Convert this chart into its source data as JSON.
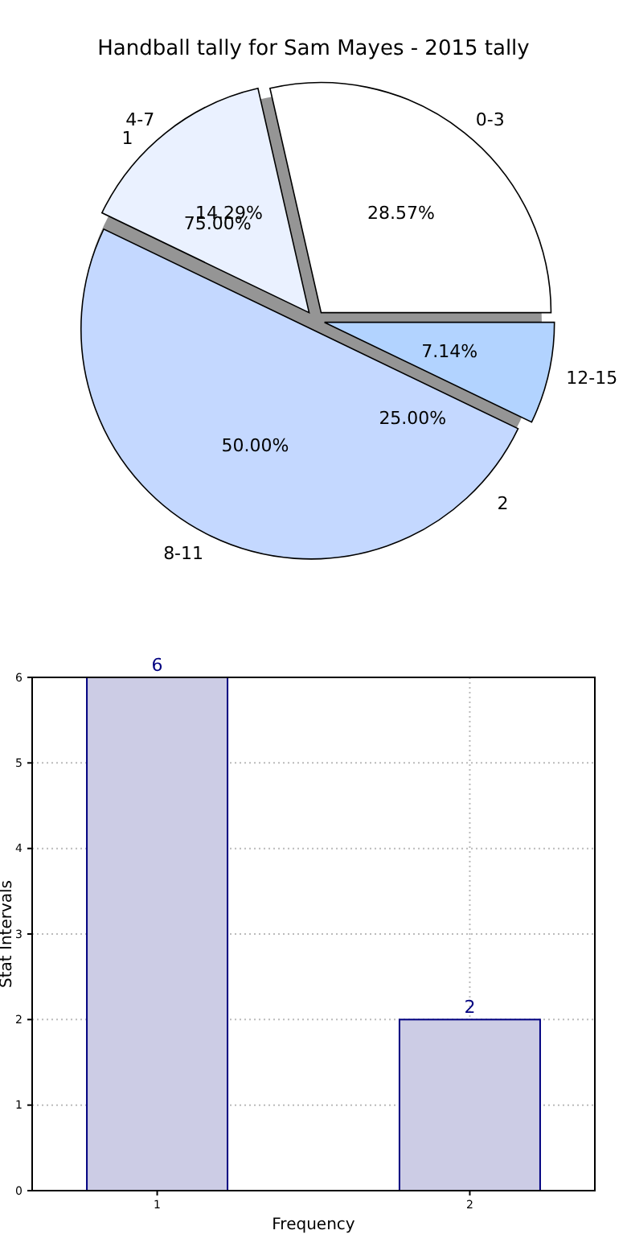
{
  "chart_data": [
    {
      "type": "pie",
      "title": "Handball tally for Sam Mayes - 2015 tally",
      "categories": [
        "0-3",
        "4-7",
        "8-11",
        "12-15"
      ],
      "values": [
        28.57,
        14.29,
        50.0,
        7.14
      ],
      "value_labels": [
        "28.57%",
        "14.29%",
        "50.00%",
        "7.14%"
      ],
      "colors": [
        "#ffffff",
        "#eaf1ff",
        "#c4d8ff",
        "#b2d3ff"
      ]
    },
    {
      "type": "pie",
      "categories": [
        "1",
        "2"
      ],
      "values": [
        75.0,
        25.0
      ],
      "value_labels": [
        "75.00%",
        "25.00%"
      ],
      "colors": [
        "#8a8a8a",
        "#8a8a8a"
      ]
    },
    {
      "type": "bar",
      "categories": [
        "1",
        "2"
      ],
      "values": [
        6,
        2
      ],
      "color": "#cccce5",
      "xlabel": "Frequency",
      "ylabel": "Stat Intervals",
      "ylim": [
        0,
        6
      ],
      "yticks": [
        0,
        1,
        2,
        3,
        4,
        5,
        6
      ],
      "grid": true,
      "data_labels": true
    }
  ]
}
